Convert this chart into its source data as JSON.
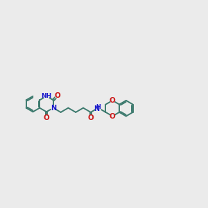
{
  "bg_color": "#ebebeb",
  "bond_color": "#3d7a6e",
  "N_color": "#1a1acc",
  "O_color": "#cc1a1a",
  "line_width": 1.4,
  "ring_r": 0.38,
  "fig_width": 3.0,
  "fig_height": 3.0,
  "xlim": [
    0.0,
    10.0
  ],
  "ylim": [
    3.5,
    6.5
  ]
}
